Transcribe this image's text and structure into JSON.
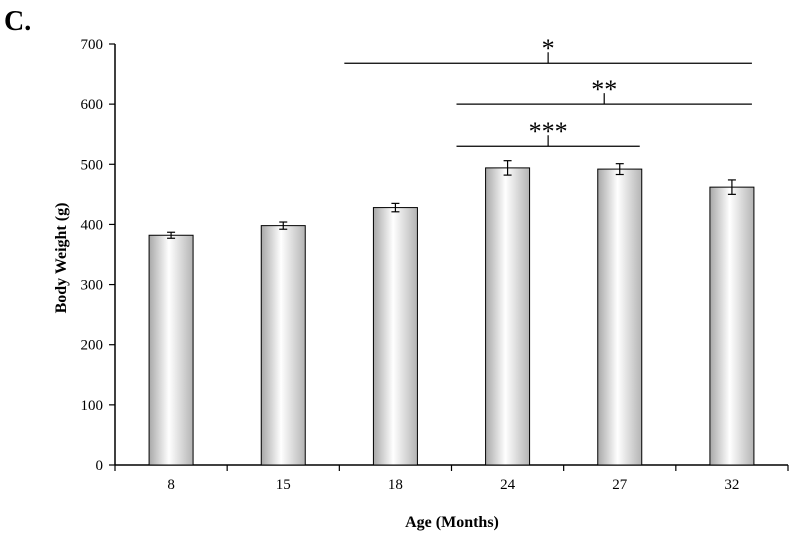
{
  "panel_label": "C.",
  "chart_data": {
    "type": "bar",
    "title": "",
    "xlabel": "Age (Months)",
    "ylabel": "Body Weight (g)",
    "ylim": [
      0,
      700
    ],
    "yticks": [
      0,
      100,
      200,
      300,
      400,
      500,
      600,
      700
    ],
    "categories": [
      "8",
      "15",
      "18",
      "24",
      "27",
      "32"
    ],
    "values": [
      382,
      398,
      428,
      494,
      492,
      462
    ],
    "errors": [
      5,
      6,
      7,
      12,
      9,
      12
    ],
    "bar_fill": "gradient-gray",
    "grid": false,
    "significance": [
      {
        "from": "18",
        "to": "32",
        "label": "*",
        "y": 668
      },
      {
        "from": "24",
        "to": "32",
        "label": "**",
        "y": 600
      },
      {
        "from": "24",
        "to": "27",
        "label": "***",
        "y": 530
      }
    ]
  }
}
